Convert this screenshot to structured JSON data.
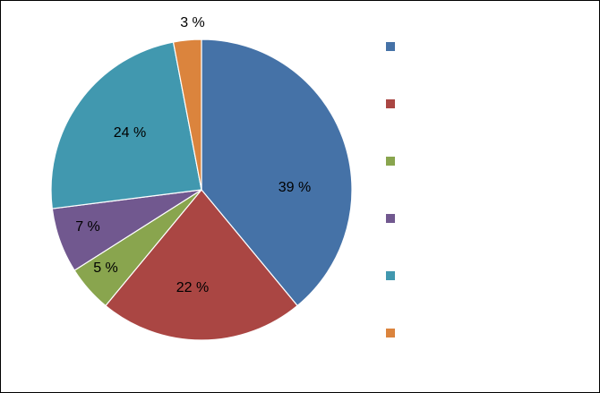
{
  "chart_data": {
    "type": "pie",
    "title": "",
    "start_angle_deg": 0,
    "direction": "clockwise",
    "slices": [
      {
        "value": 39,
        "label": "39 %",
        "color": "#4572A7",
        "legend_label": ""
      },
      {
        "value": 22,
        "label": "22 %",
        "color": "#AA4643",
        "legend_label": ""
      },
      {
        "value": 5,
        "label": "5 %",
        "color": "#89A54E",
        "legend_label": ""
      },
      {
        "value": 7,
        "label": "7 %",
        "color": "#71588F",
        "legend_label": ""
      },
      {
        "value": 24,
        "label": "24 %",
        "color": "#4198AF",
        "legend_label": ""
      },
      {
        "value": 3,
        "label": "3 %",
        "color": "#DB843D",
        "legend_label": ""
      }
    ],
    "legend": {
      "placement": "right"
    }
  }
}
